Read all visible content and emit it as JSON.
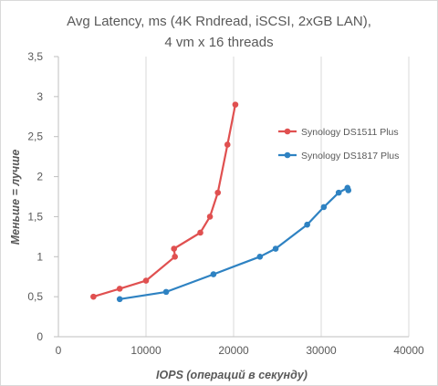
{
  "chart_data": {
    "type": "line",
    "title_line1": "Avg Latency, ms (4K Rndread, iSCSI, 2xGB LAN),",
    "title_line2": "4 vm x 16 threads",
    "xlabel": "IOPS (операций в секунду)",
    "ylabel": "Меньше = лучше",
    "xlim": [
      0,
      40000
    ],
    "ylim": [
      0,
      3.5
    ],
    "x_ticks": [
      "0",
      "10000",
      "20000",
      "30000",
      "40000"
    ],
    "y_ticks": [
      "0",
      "0,5",
      "1",
      "1,5",
      "2",
      "2,5",
      "3",
      "3,5"
    ],
    "grid": "vertical",
    "legend_position": "right",
    "series": [
      {
        "name": "Synology DS1511 Plus",
        "color": "#e05050",
        "points": [
          [
            4000,
            0.5
          ],
          [
            7000,
            0.6
          ],
          [
            10000,
            0.7
          ],
          [
            13300,
            1.0
          ],
          [
            13200,
            1.1
          ],
          [
            16200,
            1.3
          ],
          [
            17300,
            1.5
          ],
          [
            18200,
            1.8
          ],
          [
            19300,
            2.4
          ],
          [
            20200,
            2.9
          ]
        ]
      },
      {
        "name": "Synology DS1817 Plus",
        "color": "#2e82c2",
        "points": [
          [
            7000,
            0.47
          ],
          [
            12300,
            0.56
          ],
          [
            17700,
            0.78
          ],
          [
            23000,
            1.0
          ],
          [
            24800,
            1.1
          ],
          [
            28400,
            1.4
          ],
          [
            30300,
            1.62
          ],
          [
            32000,
            1.8
          ],
          [
            33000,
            1.86
          ],
          [
            33100,
            1.83
          ]
        ]
      }
    ]
  }
}
